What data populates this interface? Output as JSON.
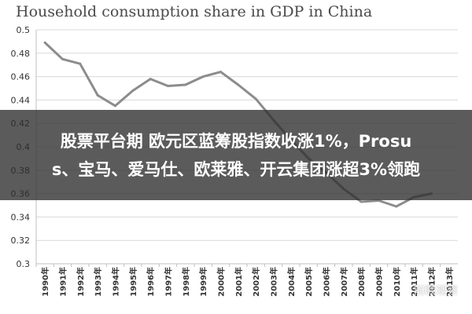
{
  "chart_data": {
    "type": "line",
    "title": "Household consumption share in GDP in China",
    "xlabel": "",
    "ylabel": "",
    "ylim": [
      0.3,
      0.5
    ],
    "y_ticks": [
      "0.3",
      "0.32",
      "0.34",
      "0.36",
      "0.38",
      "0.4",
      "0.42",
      "0.44",
      "0.46",
      "0.48",
      "0.5"
    ],
    "categories": [
      "1990年",
      "1991年",
      "1992年",
      "1993年",
      "1994年",
      "1995年",
      "1996年",
      "1997年",
      "1998年",
      "1999年",
      "2000年",
      "2001年",
      "2002年",
      "2003年",
      "2004年",
      "2005年",
      "2006年",
      "2007年",
      "2008年",
      "2009年",
      "2010年",
      "2011年",
      "2012年",
      "2013年"
    ],
    "series": [
      {
        "name": "Household consumption share",
        "color": "#8c8c8c",
        "values": [
          0.489,
          0.475,
          0.471,
          0.444,
          0.435,
          0.448,
          0.458,
          0.452,
          0.453,
          0.46,
          0.464,
          0.453,
          0.441,
          0.423,
          0.406,
          0.39,
          0.378,
          0.364,
          0.353,
          0.354,
          0.349,
          0.357,
          0.36,
          null
        ]
      }
    ],
    "grid": true
  },
  "overlay": {
    "line1": "股票平台期 欧元区蓝筹股指数收涨1%，Prosu",
    "line2": "s、宝马、爱马仕、欧莱雅、开云集团涨超3%领跑"
  },
  "watermark": {
    "text": "前瞻观察"
  }
}
